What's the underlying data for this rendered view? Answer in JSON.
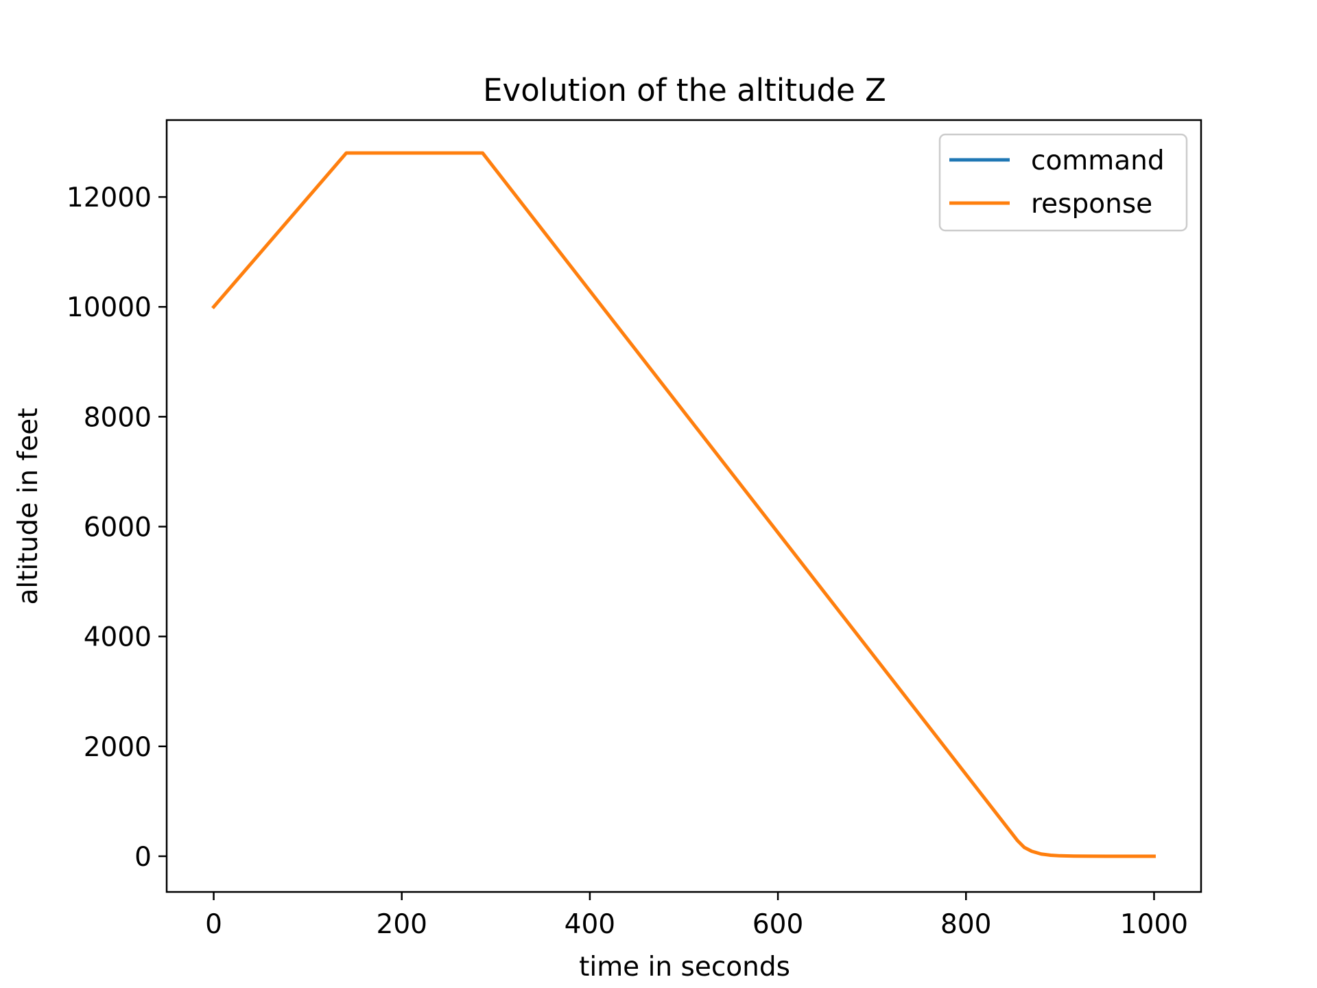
{
  "chart_data": {
    "type": "line",
    "title": "Evolution of the altitude Z",
    "xlabel": "time in seconds",
    "ylabel": "altitude in feet",
    "xlim": [
      -50,
      1050
    ],
    "ylim": [
      -650,
      13400
    ],
    "xticks": [
      0,
      200,
      400,
      600,
      800,
      1000
    ],
    "yticks": [
      0,
      2000,
      4000,
      6000,
      8000,
      10000,
      12000
    ],
    "grid": false,
    "legend_position": "top-right",
    "series": [
      {
        "name": "command",
        "color": "#1f77b4",
        "x": [
          0,
          141,
          286,
          855,
          862,
          870,
          880,
          890,
          900,
          915,
          930,
          950,
          1000
        ],
        "y": [
          10000,
          12800,
          12800,
          280,
          160,
          90,
          40,
          18,
          8,
          3,
          1,
          0,
          0
        ]
      },
      {
        "name": "response",
        "color": "#ff7f0e",
        "x": [
          0,
          141,
          286,
          855,
          862,
          870,
          880,
          890,
          900,
          915,
          930,
          950,
          1000
        ],
        "y": [
          10000,
          12800,
          12800,
          280,
          160,
          90,
          40,
          18,
          8,
          3,
          1,
          0,
          0
        ]
      }
    ]
  }
}
